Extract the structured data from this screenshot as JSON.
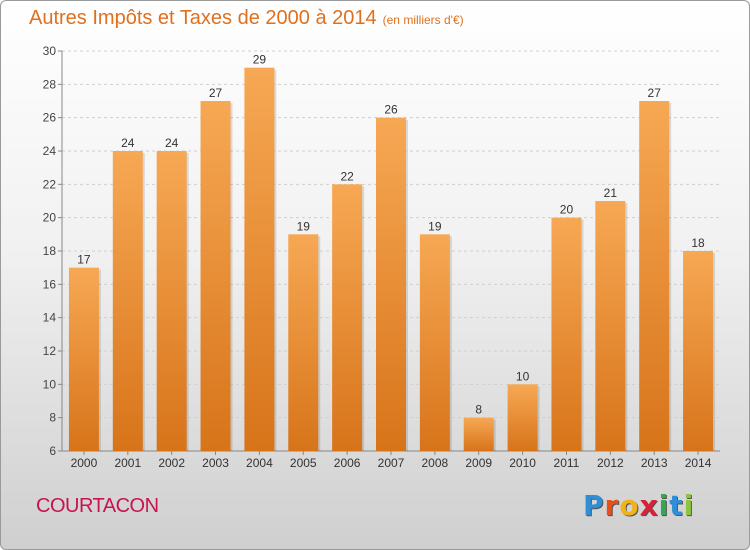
{
  "header": {
    "title": "Autres Impôts et Taxes de 2000 à 2014",
    "unit": "(en milliers d'€)"
  },
  "footer": {
    "commune": "COURTACON",
    "brand": "Proxiti",
    "brand_letters": [
      {
        "ch": "P",
        "color": "#2f8fd6"
      },
      {
        "ch": "r",
        "color": "#e8501a"
      },
      {
        "ch": "o",
        "color": "#f2b21a"
      },
      {
        "ch": "x",
        "color": "#d8223a"
      },
      {
        "ch": "i",
        "color": "#33a853"
      },
      {
        "ch": "t",
        "color": "#2f8fd6"
      },
      {
        "ch": "i",
        "color": "#8cc63e"
      }
    ]
  },
  "colors": {
    "bar_light": "#f7a854",
    "bar_dark": "#d7741a",
    "title": "#e0701e",
    "commune": "#c8144f"
  },
  "chart_data": {
    "type": "bar",
    "title": "Autres Impôts et Taxes de 2000 à 2014",
    "subtitle": "(en milliers d'€)",
    "categories": [
      "2000",
      "2001",
      "2002",
      "2003",
      "2004",
      "2005",
      "2006",
      "2007",
      "2008",
      "2009",
      "2010",
      "2011",
      "2012",
      "2013",
      "2014"
    ],
    "values": [
      17,
      24,
      24,
      27,
      29,
      19,
      22,
      26,
      19,
      8,
      10,
      20,
      21,
      27,
      18
    ],
    "ylim": [
      6,
      30
    ],
    "yticks": [
      6,
      8,
      10,
      12,
      14,
      16,
      18,
      20,
      22,
      24,
      26,
      28,
      30
    ],
    "grid": true,
    "xlabel": "",
    "ylabel": ""
  }
}
